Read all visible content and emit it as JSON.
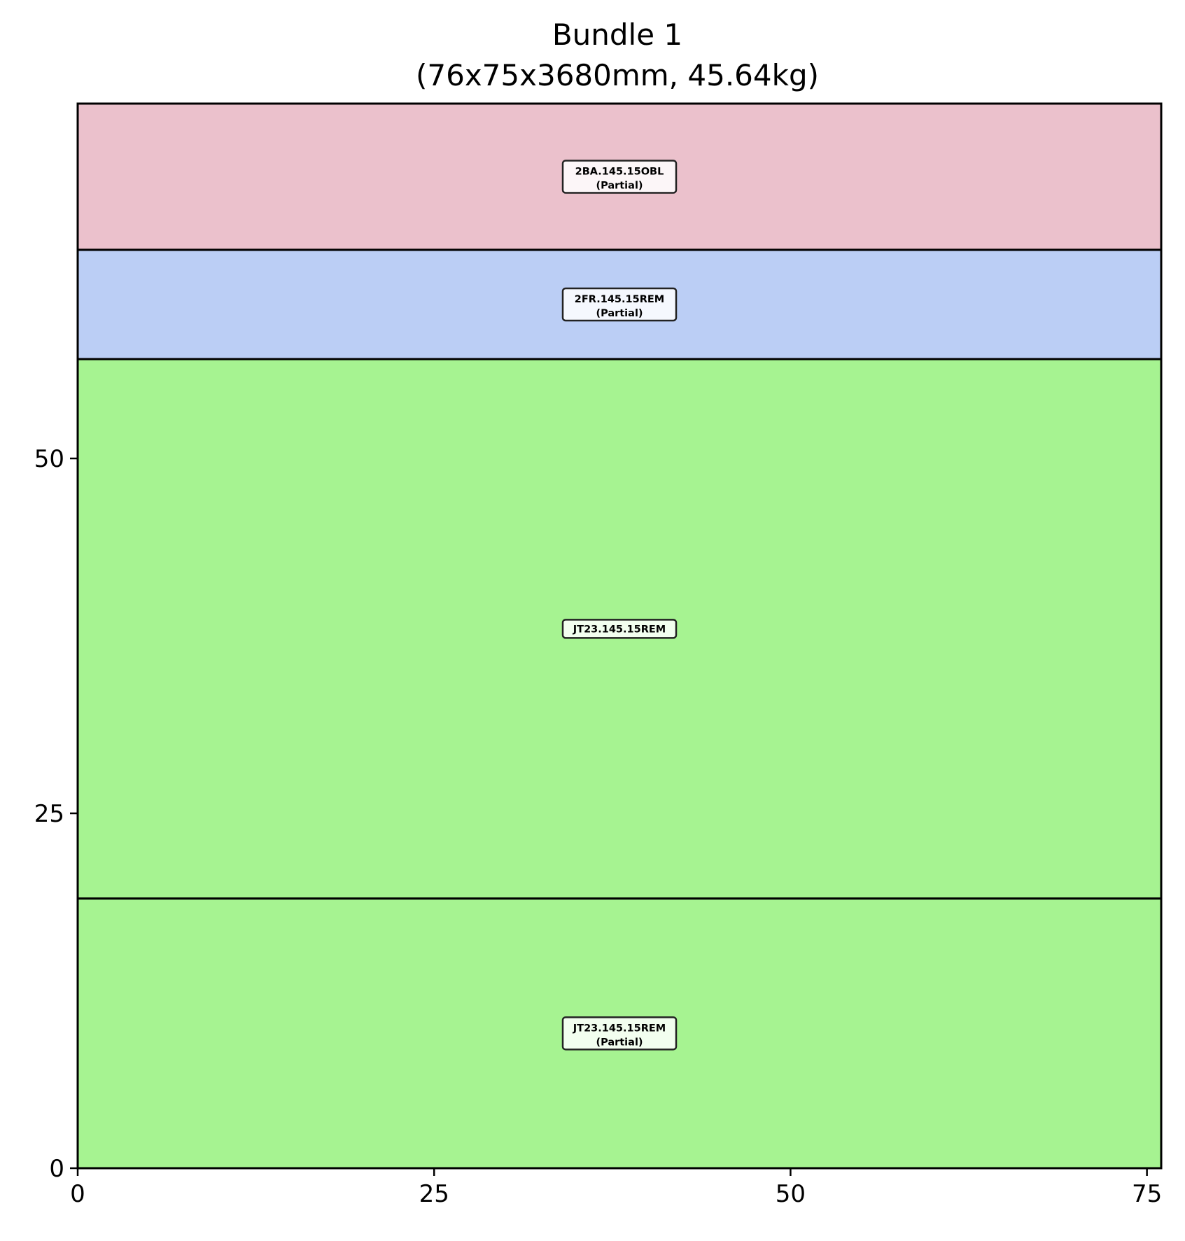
{
  "chart_data": {
    "type": "bar",
    "title": "Bundle 1",
    "subtitle": "(76x75x3680mm, 45.64kg)",
    "xlabel": "",
    "ylabel": "",
    "xlim": [
      0,
      76
    ],
    "ylim": [
      0,
      75
    ],
    "xticks": [
      0,
      25,
      50,
      75
    ],
    "yticks": [
      0,
      25,
      50
    ],
    "grid": false,
    "legend": "none",
    "pieces": [
      {
        "label": "JT23.145.15REM",
        "status": "(Partial)",
        "x": 0,
        "width": 76,
        "y": 0,
        "height": 19,
        "color": "#a6f391"
      },
      {
        "label": "JT23.145.15REM",
        "status": "",
        "x": 0,
        "width": 76,
        "y": 19,
        "height": 38,
        "color": "#a6f391"
      },
      {
        "label": "2FR.145.15REM",
        "status": "(Partial)",
        "x": 0,
        "width": 76,
        "y": 57,
        "height": 7.7,
        "color": "#bbcef5"
      },
      {
        "label": "2BA.145.15OBL",
        "status": "(Partial)",
        "x": 0,
        "width": 76,
        "y": 64.7,
        "height": 10.3,
        "color": "#ebc1cc"
      }
    ]
  }
}
